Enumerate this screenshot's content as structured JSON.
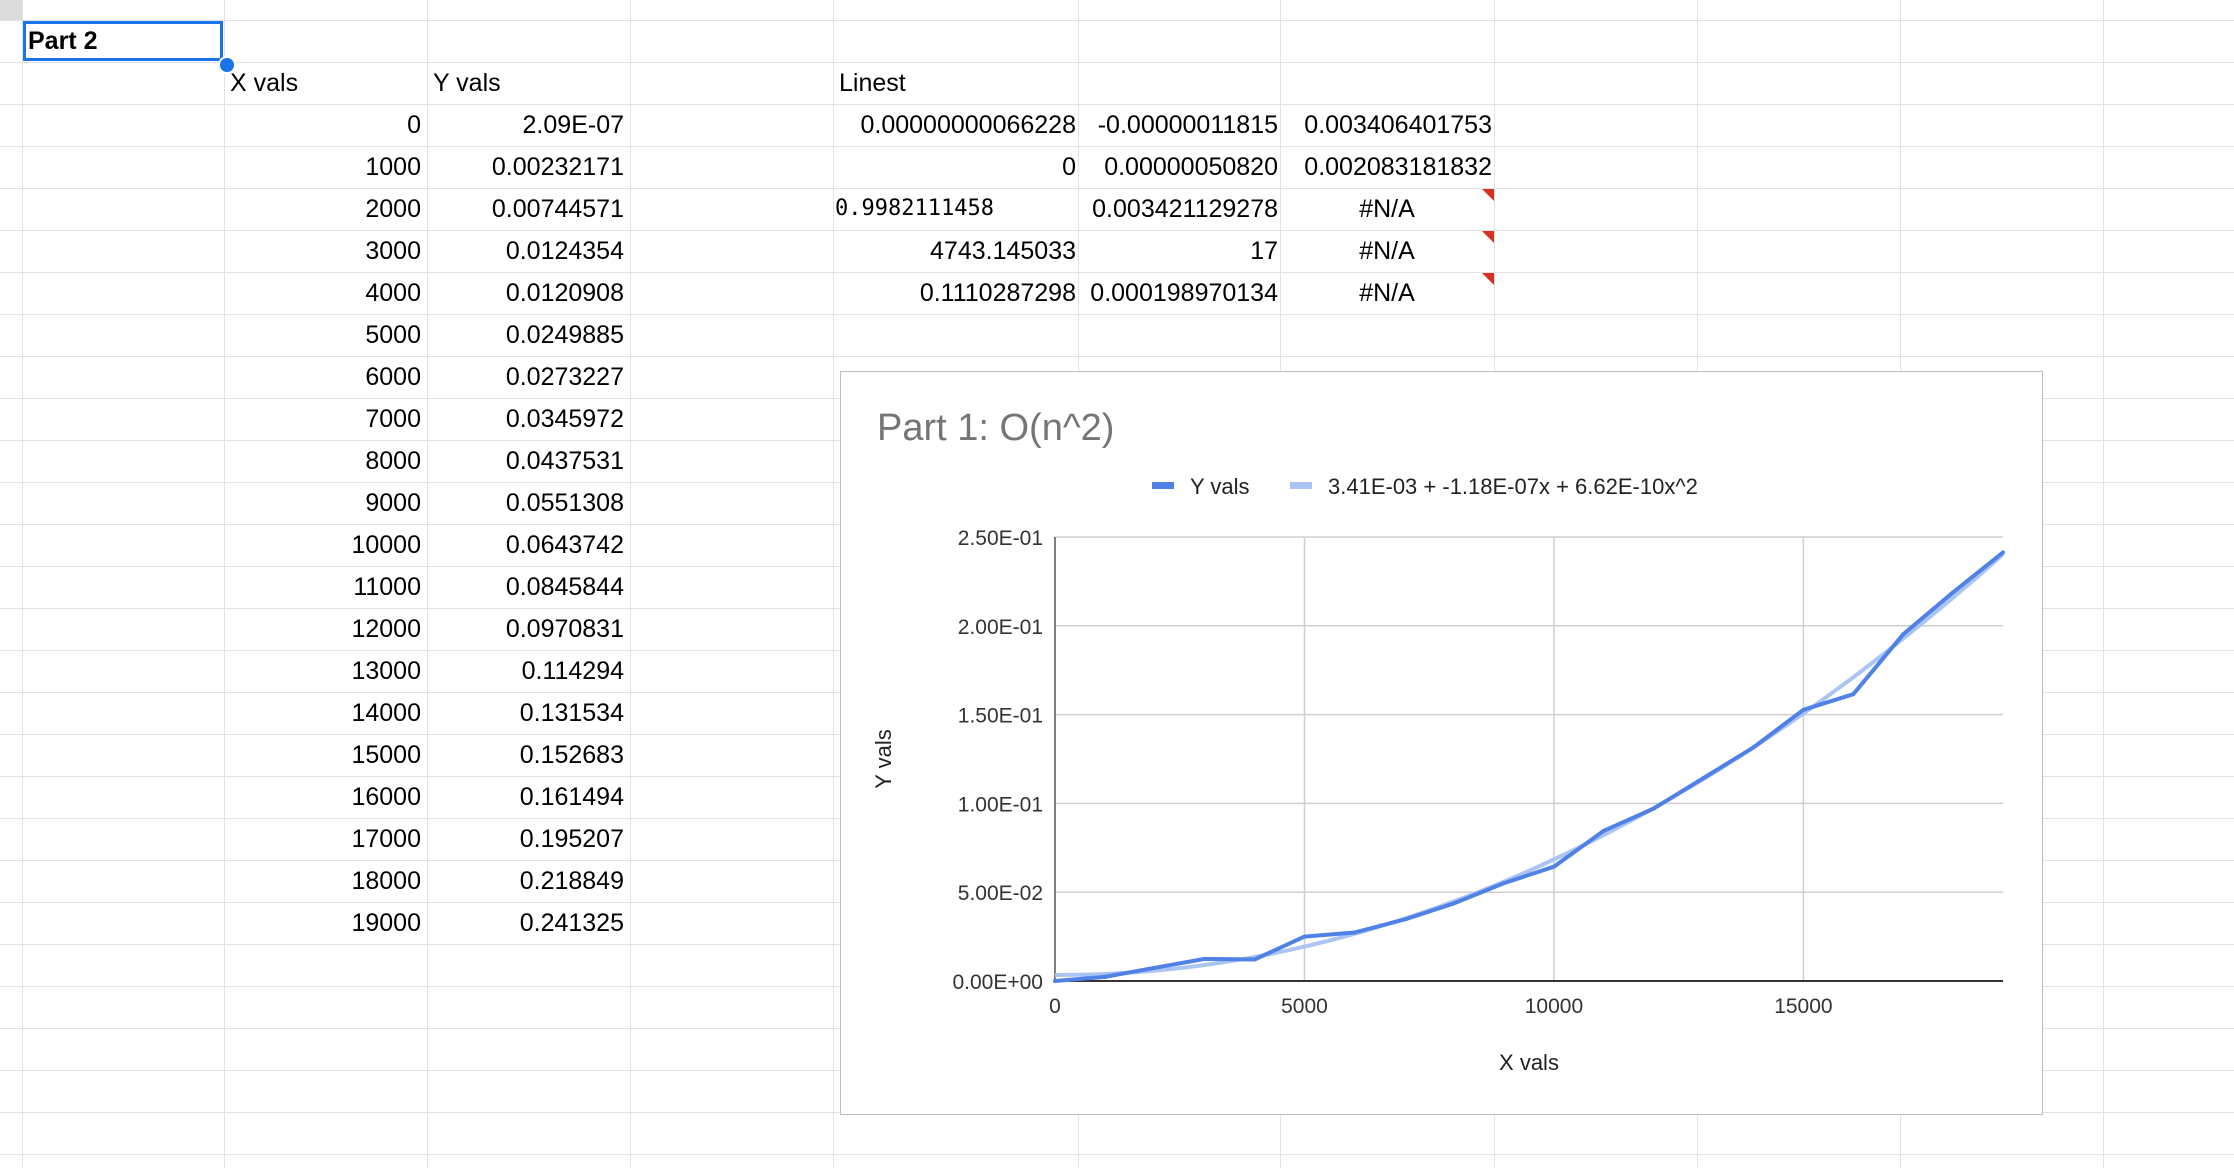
{
  "sheet": {
    "selected_cell": "Part 2",
    "headers": {
      "x": "X vals",
      "y": "Y vals",
      "linest": "Linest"
    },
    "x_vals": [
      "0",
      "1000",
      "2000",
      "3000",
      "4000",
      "5000",
      "6000",
      "7000",
      "8000",
      "9000",
      "10000",
      "11000",
      "12000",
      "13000",
      "14000",
      "15000",
      "16000",
      "17000",
      "18000",
      "19000"
    ],
    "y_vals": [
      "2.09E-07",
      "0.00232171",
      "0.00744571",
      "0.0124354",
      "0.0120908",
      "0.0249885",
      "0.0273227",
      "0.0345972",
      "0.0437531",
      "0.0551308",
      "0.0643742",
      "0.0845844",
      "0.0970831",
      "0.114294",
      "0.131534",
      "0.152683",
      "0.161494",
      "0.195207",
      "0.218849",
      "0.241325"
    ],
    "linest": [
      [
        "0.00000000066228",
        "-0.00000011815",
        "0.003406401753"
      ],
      [
        "0",
        "0.00000050820",
        "0.002083181832"
      ],
      [
        "0.9982111458",
        "0.003421129278",
        "#N/A"
      ],
      [
        "4743.145033",
        "17",
        "#N/A"
      ],
      [
        "0.1110287298",
        "0.000198970134",
        "#N/A"
      ]
    ],
    "error_marker_color": "#d93025",
    "selection_color": "#1a73e8"
  },
  "chart_data": {
    "type": "line",
    "title": "Part 1: O(n^2)",
    "xlabel": "X vals",
    "ylabel": "Y vals",
    "xlim": [
      0,
      19000
    ],
    "ylim": [
      0,
      0.25
    ],
    "x_ticks": [
      "0",
      "5000",
      "10000",
      "15000"
    ],
    "x_tick_values": [
      0,
      5000,
      10000,
      15000
    ],
    "y_ticks": [
      "0.00E+00",
      "5.00E-02",
      "1.00E-01",
      "1.50E-01",
      "2.00E-01",
      "2.50E-01"
    ],
    "y_tick_values": [
      0,
      0.05,
      0.1,
      0.15,
      0.2,
      0.25
    ],
    "grid": true,
    "legend_position": "top",
    "x": [
      0,
      1000,
      2000,
      3000,
      4000,
      5000,
      6000,
      7000,
      8000,
      9000,
      10000,
      11000,
      12000,
      13000,
      14000,
      15000,
      16000,
      17000,
      18000,
      19000
    ],
    "series": [
      {
        "name": "Y vals",
        "color": "#4f81e6",
        "values": [
          2.09e-07,
          0.00232171,
          0.00744571,
          0.0124354,
          0.0120908,
          0.0249885,
          0.0273227,
          0.0345972,
          0.0437531,
          0.0551308,
          0.0643742,
          0.0845844,
          0.0970831,
          0.114294,
          0.131534,
          0.152683,
          0.161494,
          0.195207,
          0.218849,
          0.241325
        ]
      },
      {
        "name": "3.41E-03 + -1.18E-07x + 6.62E-10x^2",
        "color": "#aac4f3",
        "trendline": {
          "type": "polynomial",
          "coefficients": [
            0.003406401753,
            -1.1815e-07,
            6.6228e-10
          ]
        }
      }
    ]
  }
}
